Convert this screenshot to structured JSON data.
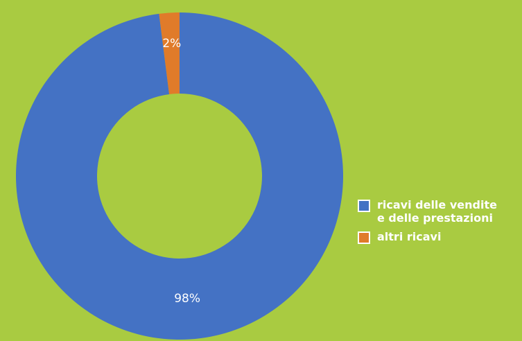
{
  "chart_data": {
    "type": "donut",
    "categories": [
      "ricavi delle vendite e delle prestazioni",
      "altri ricavi"
    ],
    "values": [
      98,
      2
    ],
    "value_labels": [
      "98%",
      "2%"
    ],
    "colors": [
      "#4472c4",
      "#e07b2a"
    ],
    "legend": "right"
  }
}
